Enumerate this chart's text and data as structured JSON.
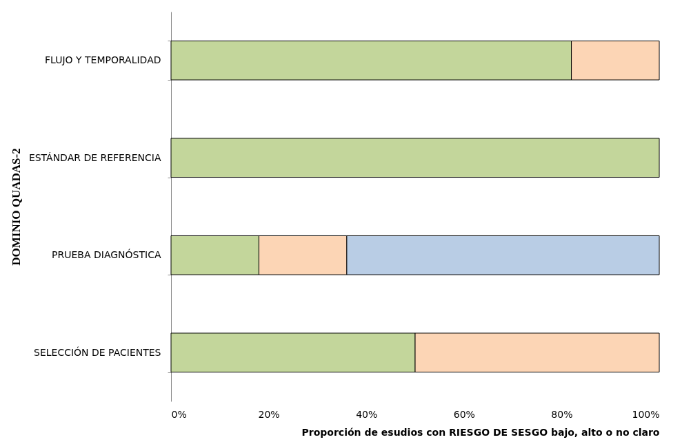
{
  "chart_data": {
    "type": "bar",
    "orientation": "horizontal",
    "stacked": true,
    "categories": [
      "FLUJO Y TEMPORALIDAD",
      "ESTÁNDAR DE REFERENCIA",
      "PRUEBA DIAGNÓSTICA",
      "SELECCIÓN DE PACIENTES"
    ],
    "series": [
      {
        "color": "#c3d69b",
        "values": [
          82,
          100,
          18,
          50
        ]
      },
      {
        "color": "#fcd5b5",
        "values": [
          18,
          0,
          18,
          50
        ]
      },
      {
        "color": "#b9cde5",
        "values": [
          0,
          0,
          64,
          0
        ]
      }
    ],
    "xlim": [
      0,
      100
    ],
    "xticks": [
      {
        "value": 0,
        "label": "0%"
      },
      {
        "value": 20,
        "label": "20%"
      },
      {
        "value": 40,
        "label": "40%"
      },
      {
        "value": 60,
        "label": "60%"
      },
      {
        "value": 80,
        "label": "80%"
      },
      {
        "value": 100,
        "label": "100%"
      }
    ],
    "xlabel": "Proporción de esudios con RIESGO DE SESGO bajo, alto o no claro",
    "ylabel": "DOMINIO  QUADAS-2",
    "grid": false,
    "legend": false
  }
}
